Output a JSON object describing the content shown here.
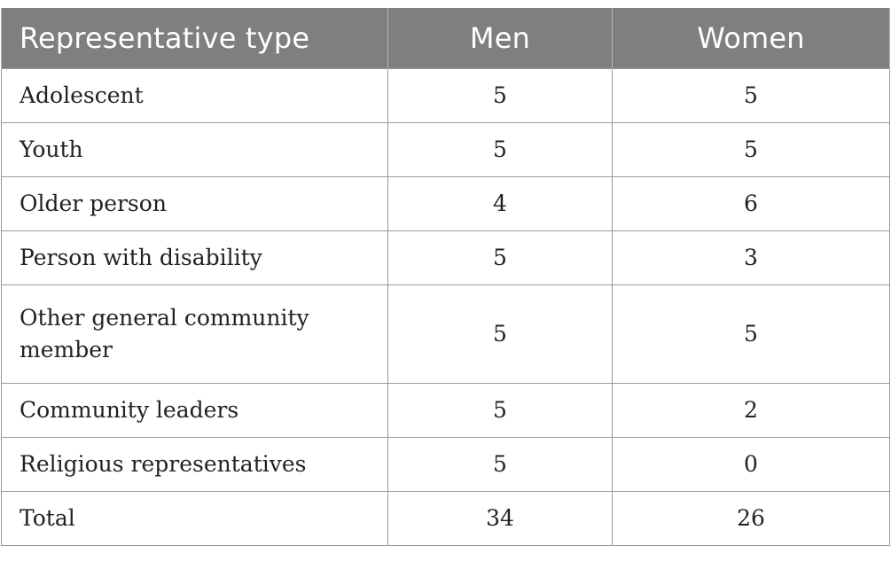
{
  "table": {
    "headers": [
      "Representative type",
      "Men",
      "Women"
    ],
    "rows": [
      {
        "type": "Adolescent",
        "men": "5",
        "women": "5"
      },
      {
        "type": "Youth",
        "men": "5",
        "women": "5"
      },
      {
        "type": "Older person",
        "men": "4",
        "women": "6"
      },
      {
        "type": "Person with disability",
        "men": "5",
        "women": "3"
      },
      {
        "type": "Other general community member",
        "men": "5",
        "women": "5"
      },
      {
        "type": "Community leaders",
        "men": "5",
        "women": "2"
      },
      {
        "type": "Religious representatives",
        "men": "5",
        "women": "0"
      },
      {
        "type": "Total",
        "men": "34",
        "women": "26"
      }
    ]
  },
  "colors": {
    "header_bg": "#7f7f7f",
    "header_text": "#ffffff",
    "grid": "#9a9a9a"
  }
}
